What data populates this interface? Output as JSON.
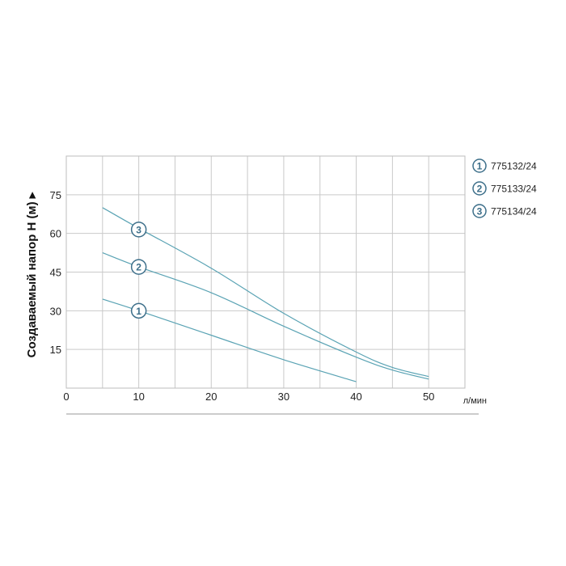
{
  "chart_data": {
    "type": "line",
    "ylabel": "Создаваемый напор H (м) ▸",
    "xlabel": "л/мин",
    "xlim": [
      0,
      55
    ],
    "ylim": [
      0,
      90
    ],
    "x_ticks": [
      "0",
      "10",
      "20",
      "30",
      "40",
      "50"
    ],
    "y_ticks": [
      "15",
      "30",
      "45",
      "60",
      "75"
    ],
    "grid": true,
    "line_color": "#5aa3b4",
    "marker_color": "#3d6f8a",
    "series": [
      {
        "marker": "1",
        "name": "775132/24",
        "marker_at": [
          10,
          30
        ],
        "points": [
          [
            5,
            34.5
          ],
          [
            10,
            30
          ],
          [
            20,
            20.5
          ],
          [
            30,
            11
          ],
          [
            40,
            2.5
          ]
        ]
      },
      {
        "marker": "2",
        "name": "775133/24",
        "marker_at": [
          10,
          47
        ],
        "points": [
          [
            5,
            52.5
          ],
          [
            10,
            47
          ],
          [
            20,
            37
          ],
          [
            30,
            24
          ],
          [
            40,
            12
          ],
          [
            45,
            7
          ],
          [
            50,
            3.5
          ]
        ]
      },
      {
        "marker": "3",
        "name": "775134/24",
        "marker_at": [
          10,
          61.5
        ],
        "points": [
          [
            5,
            70
          ],
          [
            10,
            62
          ],
          [
            20,
            46.5
          ],
          [
            30,
            29
          ],
          [
            40,
            14
          ],
          [
            45,
            8
          ],
          [
            50,
            4.5
          ]
        ]
      }
    ]
  }
}
